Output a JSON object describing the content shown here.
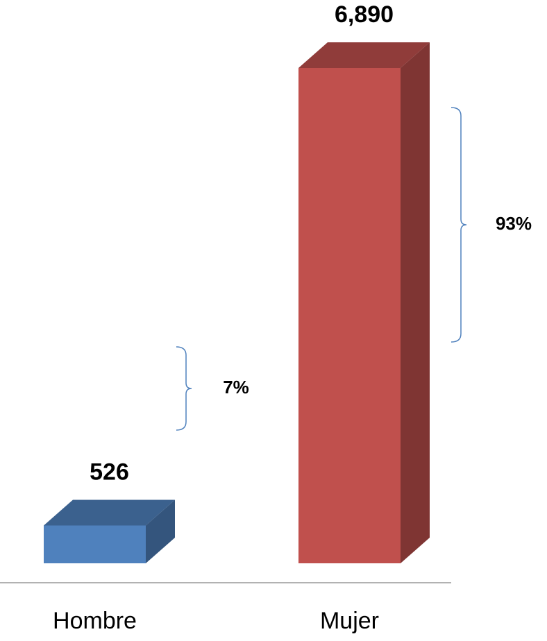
{
  "chart_data": {
    "type": "bar3d",
    "categories": [
      "Hombre",
      "Mujer"
    ],
    "values": [
      526,
      6890
    ],
    "value_labels": [
      "526",
      "6,890"
    ],
    "colors": [
      "#4f81bd",
      "#c0504d"
    ],
    "annotations": [
      "7%",
      "93%"
    ]
  }
}
